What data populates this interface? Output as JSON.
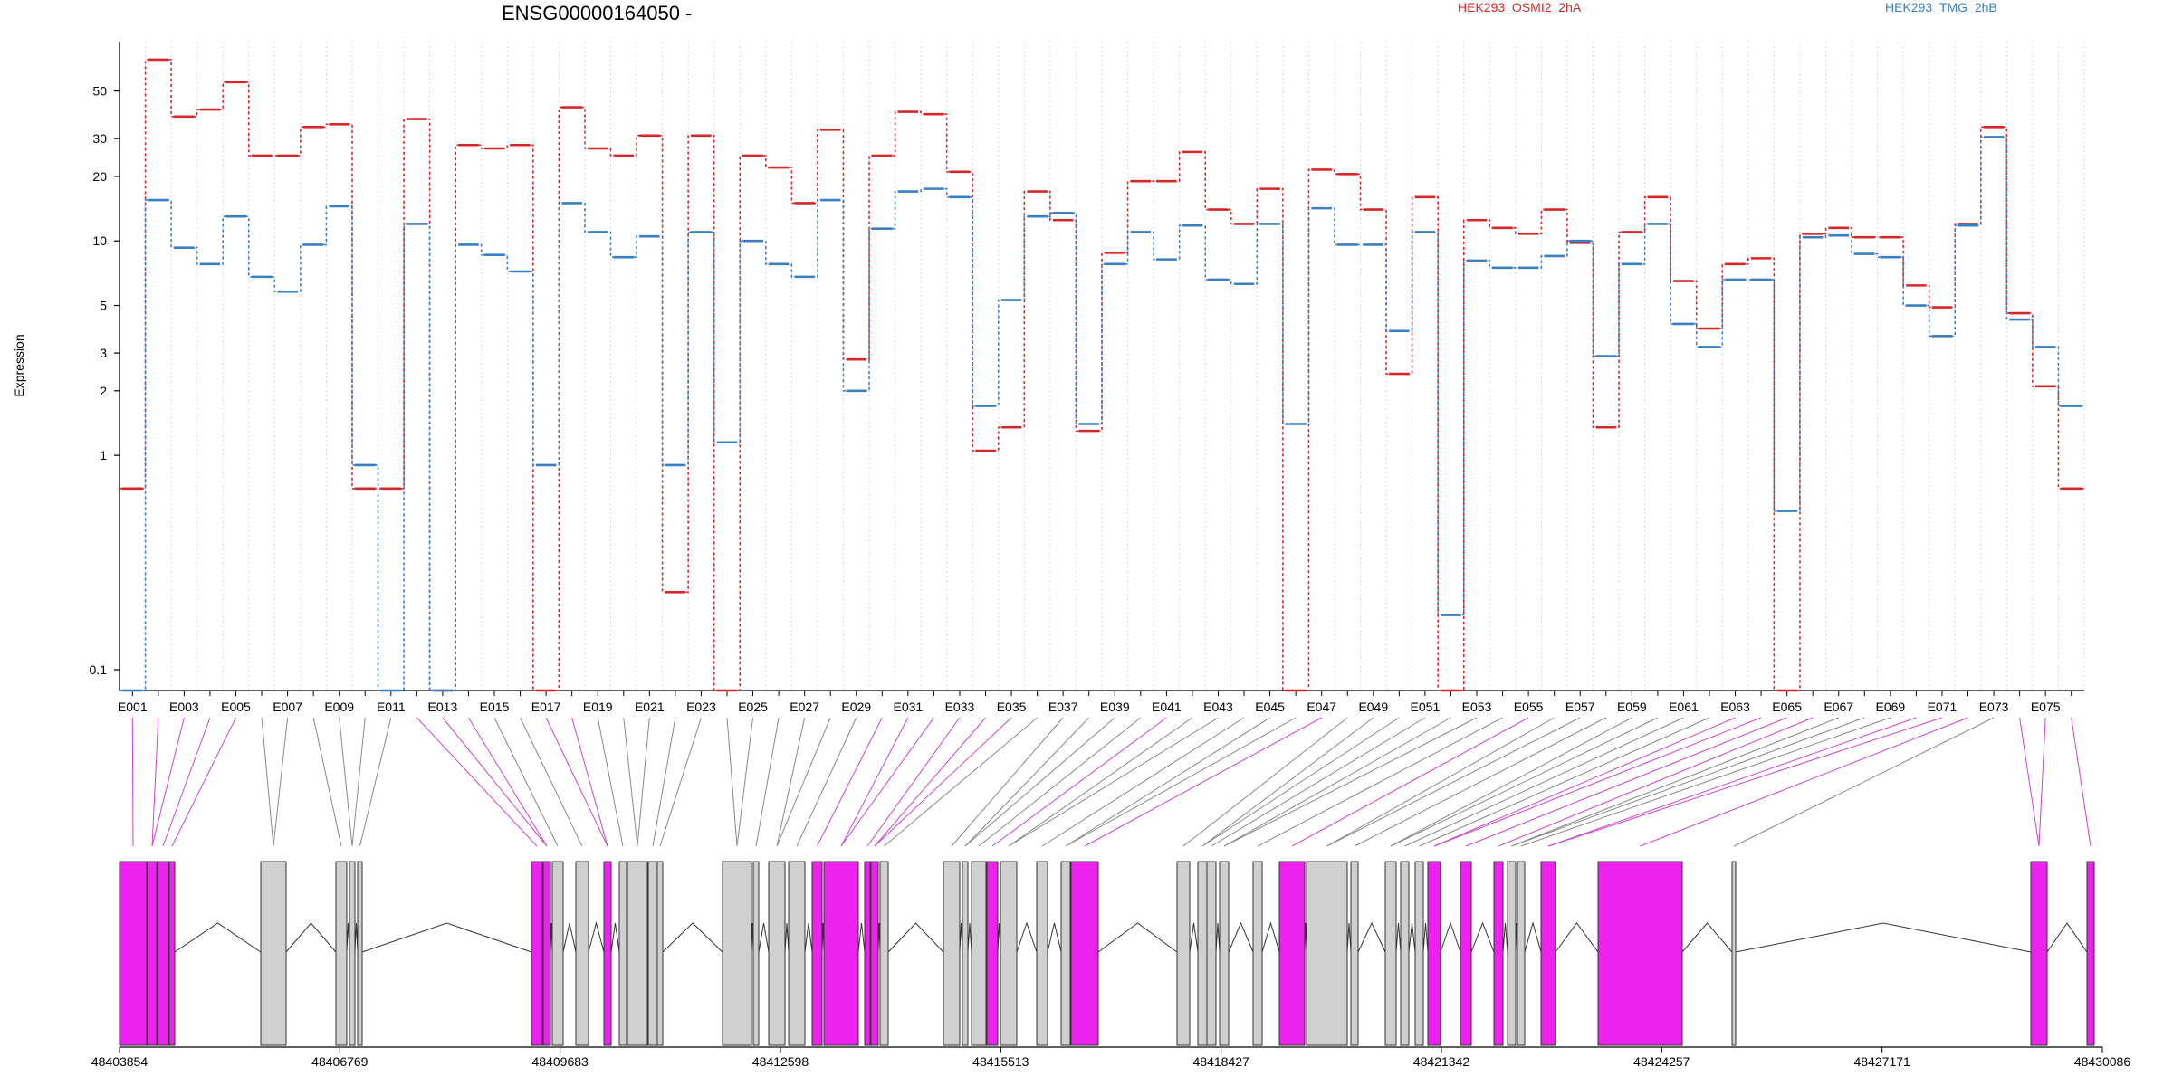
{
  "chart_data": {
    "type": "line",
    "title": "ENSG00000164050 -",
    "ylabel": "Expression",
    "y_scale": "log",
    "ylim": [
      0.08,
      85
    ],
    "y_ticks": [
      0.1,
      1,
      2,
      3,
      5,
      10,
      20,
      30,
      50
    ],
    "y_tick_labels": [
      "0.1",
      "1",
      "2",
      "3",
      "5",
      "10",
      "20",
      "30",
      "50"
    ],
    "exon_labels": [
      "E001",
      "E003",
      "E005",
      "E007",
      "E009",
      "E011",
      "E013",
      "E015",
      "E017",
      "E019",
      "E021",
      "E023",
      "E025",
      "E027",
      "E029",
      "E031",
      "E033",
      "E035",
      "E037",
      "E039",
      "E041",
      "E043",
      "E045",
      "E047",
      "E049",
      "E051",
      "E053",
      "E055",
      "E057",
      "E059",
      "E061",
      "E063",
      "E065",
      "E067",
      "E069",
      "E071",
      "E073",
      "E075"
    ],
    "series": [
      {
        "name": "HEK293_OSMI2_2hA",
        "color": "#d62728",
        "values": [
          0.7,
          70,
          38,
          41,
          55,
          25,
          25,
          34,
          35,
          0.7,
          0.7,
          37,
          0.08,
          28,
          27,
          28,
          0.08,
          42,
          27,
          25,
          31,
          0.23,
          31,
          0.08,
          25,
          22,
          15,
          33,
          2.8,
          25,
          40,
          39,
          21,
          1.05,
          1.35,
          17,
          12.5,
          1.3,
          8.8,
          19,
          19,
          26,
          14,
          12,
          17.5,
          0.08,
          21.5,
          20.5,
          14,
          2.4,
          16,
          0.08,
          12.5,
          11.5,
          10.8,
          14,
          9.8,
          1.35,
          11,
          16,
          6.5,
          3.9,
          7.8,
          8.3,
          0.08,
          10.8,
          11.5,
          10.4,
          10.4,
          6.2,
          4.9,
          12,
          34,
          4.6,
          2.1,
          0.7
        ]
      },
      {
        "name": "HEK293_TMG_2hB",
        "color": "#3a7fc1",
        "values": [
          0.08,
          15.5,
          9.3,
          7.8,
          13,
          6.8,
          5.8,
          9.6,
          14.5,
          0.9,
          0.08,
          12,
          0.08,
          9.6,
          8.6,
          7.2,
          0.9,
          15,
          11,
          8.4,
          10.5,
          0.9,
          11,
          1.15,
          10,
          7.8,
          6.8,
          15.5,
          2.0,
          11.4,
          17,
          17.5,
          16,
          1.7,
          5.3,
          13,
          13.5,
          1.4,
          7.8,
          11,
          8.2,
          11.8,
          6.6,
          6.3,
          12,
          1.4,
          14.2,
          9.6,
          9.6,
          3.8,
          11,
          0.18,
          8.1,
          7.5,
          7.5,
          8.5,
          10,
          2.9,
          7.8,
          12,
          4.1,
          3.2,
          6.6,
          6.6,
          0.55,
          10.4,
          10.6,
          8.7,
          8.4,
          5.0,
          3.6,
          11.8,
          30.5,
          4.3,
          3.2,
          1.7
        ]
      }
    ],
    "gene_axis": {
      "tick_labels": [
        "48403854",
        "48406769",
        "48409683",
        "48412598",
        "48415513",
        "48418427",
        "48421342",
        "48424257",
        "48427171",
        "48430086"
      ]
    },
    "legend_placement": "top-right",
    "colors": {
      "highlight_exon": "#ee22ee",
      "normal_exon": "#d0d0d0",
      "grid": "#c8d0e8"
    }
  }
}
